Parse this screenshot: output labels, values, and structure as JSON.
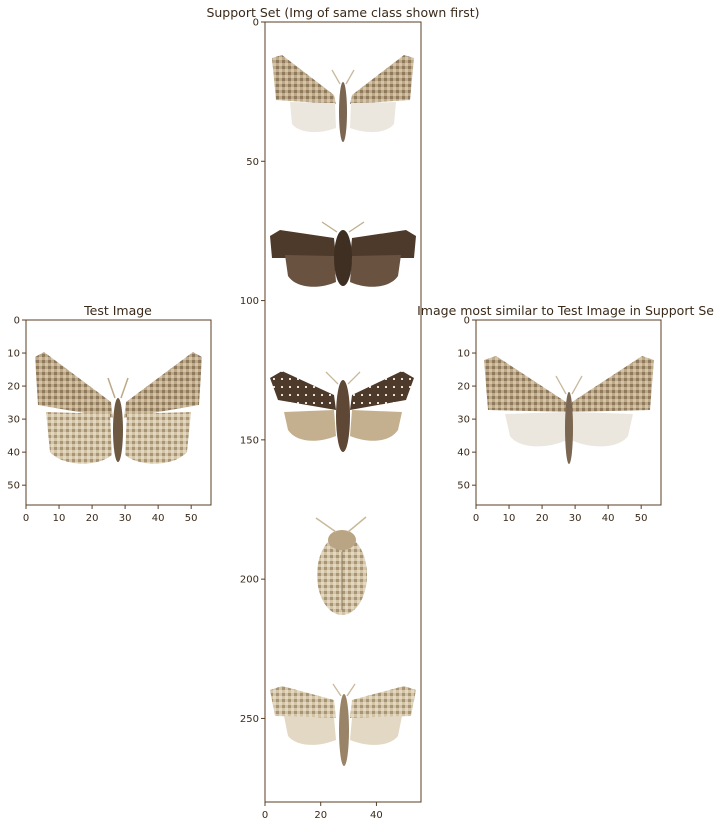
{
  "panels": {
    "test": {
      "title": "Test Image",
      "x_ticks": [
        "0",
        "10",
        "20",
        "30",
        "40",
        "50"
      ],
      "y_ticks": [
        "0",
        "10",
        "20",
        "30",
        "40",
        "50"
      ],
      "image_size": [
        56,
        56
      ]
    },
    "support": {
      "title": "Support Set (Img of same class shown first)",
      "x_ticks": [
        "0",
        "20",
        "40"
      ],
      "y_ticks": [
        "0",
        "50",
        "100",
        "150",
        "200",
        "250"
      ],
      "image_size": [
        56,
        280
      ],
      "images": [
        "pale-moth-white-hindwings",
        "dark-brown-moth",
        "dark-moth-pale-hindwings",
        "beetle",
        "light-brown-moth"
      ]
    },
    "match": {
      "title": "Image most similar to Test Image in Support Set",
      "x_ticks": [
        "0",
        "10",
        "20",
        "30",
        "40",
        "50"
      ],
      "y_ticks": [
        "0",
        "10",
        "20",
        "30",
        "40",
        "50"
      ],
      "image_size": [
        56,
        56
      ]
    }
  },
  "colors": {
    "axis": "#5a3d22",
    "text": "#3a2a1a",
    "moth_light": "#cbb89a",
    "moth_dark": "#4e3a2a",
    "moth_white": "#ede9e1"
  }
}
